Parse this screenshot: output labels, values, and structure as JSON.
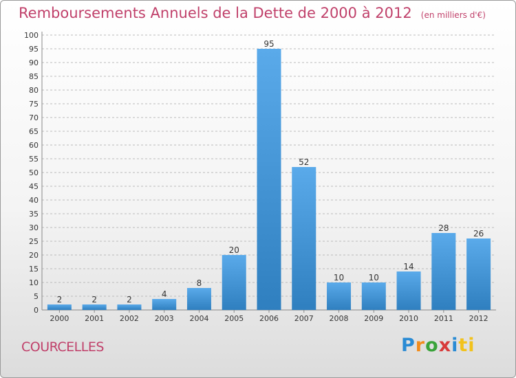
{
  "header": {
    "title": "Remboursements Annuels de la Dette de 2000 à 2012",
    "subtitle": "(en milliers d'€)"
  },
  "footer": {
    "city": "COURCELLES",
    "logo_letters": [
      "P",
      "r",
      "o",
      "x",
      "i",
      "ti"
    ]
  },
  "colors": {
    "bar_top": "#5aaaea",
    "bar_bottom": "#2f7fbf",
    "title": "#c0406a",
    "grid": "#bbbbbb"
  },
  "chart_data": {
    "type": "bar",
    "title": "Remboursements Annuels de la Dette de 2000 à 2012",
    "xlabel": "",
    "ylabel": "",
    "categories": [
      "2000",
      "2001",
      "2002",
      "2003",
      "2004",
      "2005",
      "2006",
      "2007",
      "2008",
      "2009",
      "2010",
      "2011",
      "2012"
    ],
    "values": [
      2,
      2,
      2,
      4,
      8,
      20,
      95,
      52,
      10,
      10,
      14,
      28,
      26
    ],
    "ylim": [
      0,
      100
    ],
    "ytick_step": 5,
    "grid": "horizontal dashed",
    "data_labels": true
  }
}
